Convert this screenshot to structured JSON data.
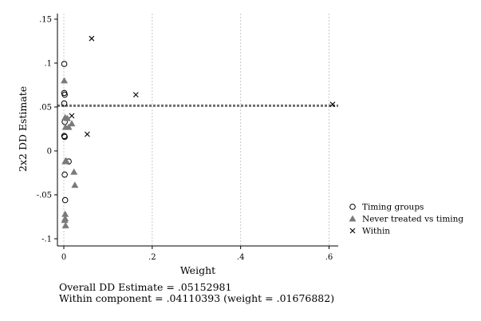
{
  "chart_data": {
    "type": "scatter",
    "xlabel": "Weight",
    "ylabel": "2x2 DD Estimate",
    "xlim": [
      0,
      0.62
    ],
    "ylim": [
      -0.1,
      0.15
    ],
    "x_ticks": [
      0,
      0.2,
      0.4,
      0.6
    ],
    "x_tick_labels": [
      "0",
      ".2",
      ".4",
      ".6"
    ],
    "y_ticks": [
      -0.1,
      -0.05,
      0,
      0.05,
      0.1,
      0.15
    ],
    "y_tick_labels": [
      "-.1",
      "-.05",
      "0",
      ".05",
      ".1",
      ".15"
    ],
    "grid": "vertical",
    "legend_position": "right",
    "reference_line": {
      "y": 0.0515,
      "style": "dotted"
    },
    "series": [
      {
        "name": "Timing groups",
        "marker": "circle",
        "points": [
          [
            0.001,
            0.099
          ],
          [
            0.001,
            0.066
          ],
          [
            0.002,
            0.064
          ],
          [
            0.001,
            0.054
          ],
          [
            0.002,
            0.033
          ],
          [
            0.001,
            0.017
          ],
          [
            0.002,
            0.016
          ],
          [
            0.002,
            -0.027
          ],
          [
            0.003,
            -0.056
          ],
          [
            0.011,
            -0.012
          ]
        ]
      },
      {
        "name": "Never treated vs timing",
        "marker": "triangle",
        "color": "#7a7a7a",
        "points": [
          [
            0.001,
            0.08
          ],
          [
            0.003,
            0.038
          ],
          [
            0.008,
            0.037
          ],
          [
            0.004,
            0.027
          ],
          [
            0.011,
            0.027
          ],
          [
            0.018,
            0.031
          ],
          [
            0.003,
            -0.012
          ],
          [
            0.005,
            -0.011
          ],
          [
            0.023,
            -0.024
          ],
          [
            0.025,
            -0.039
          ],
          [
            0.003,
            -0.072
          ],
          [
            0.003,
            -0.077
          ],
          [
            0.002,
            -0.079
          ],
          [
            0.004,
            -0.085
          ]
        ]
      },
      {
        "name": "Within",
        "marker": "x",
        "points": [
          [
            0.063,
            0.128
          ],
          [
            0.163,
            0.064
          ],
          [
            0.053,
            0.019
          ],
          [
            0.018,
            0.04
          ],
          [
            0.608,
            0.053
          ]
        ]
      }
    ]
  },
  "annotations": {
    "line1": "Overall DD Estimate = .05152981",
    "line2": "Within component = .04110393 (weight = .01676882)"
  }
}
